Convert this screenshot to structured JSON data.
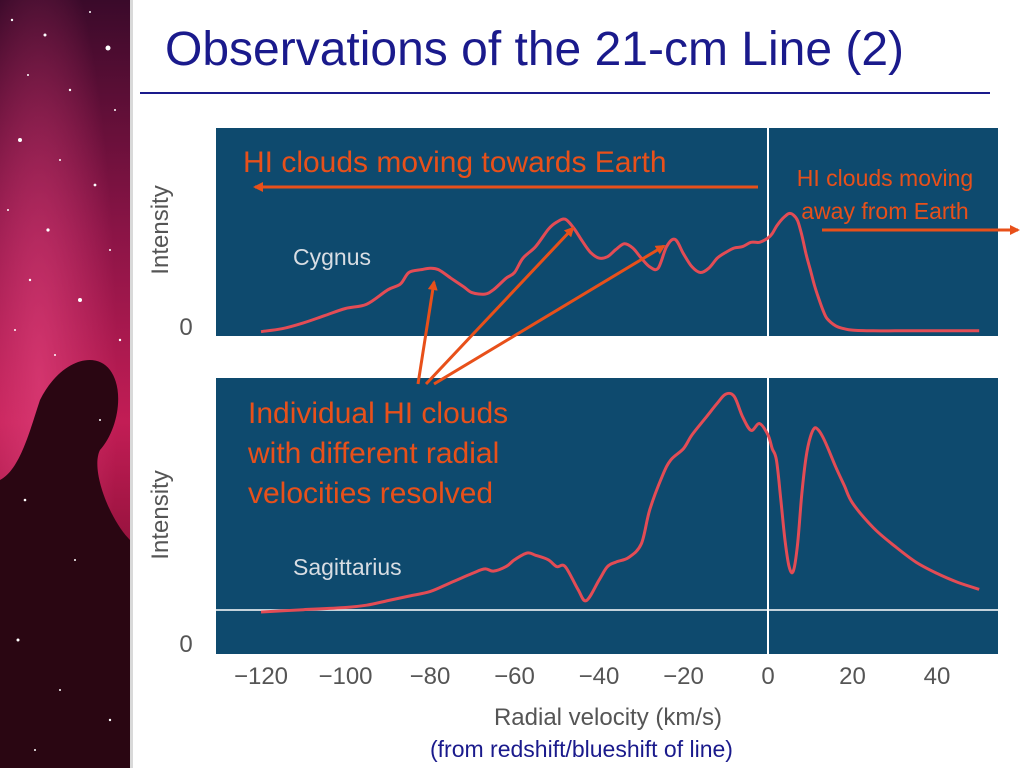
{
  "slide": {
    "title": "Observations of the 21-cm Line (2)",
    "footnote": "(from redshift/blueshift of line)"
  },
  "annotations": {
    "towards": "HI clouds moving towards Earth",
    "away_line1": "HI clouds moving",
    "away_line2": "away from Earth",
    "individual_line1": "Individual HI clouds",
    "individual_line2": "with different radial",
    "individual_line3": "velocities resolved"
  },
  "colors": {
    "title": "#1a1a8c",
    "annotation": "#e8501a",
    "panel": "#0e4a6e",
    "curve": "#e34c55"
  },
  "chart_data": [
    {
      "type": "line",
      "panel_label": "Cygnus",
      "ylabel": "Intensity",
      "y_tick": "0",
      "xlim": [
        -120,
        50
      ],
      "ylim": [
        0,
        1
      ],
      "x": [
        -120,
        -115,
        -110,
        -105,
        -100,
        -95,
        -90,
        -87,
        -85,
        -82,
        -80,
        -78,
        -75,
        -72,
        -70,
        -67,
        -65,
        -62,
        -60,
        -58,
        -55,
        -52,
        -50,
        -48,
        -46,
        -44,
        -42,
        -40,
        -38,
        -36,
        -34,
        -32,
        -30,
        -28,
        -26,
        -24,
        -22,
        -20,
        -18,
        -16,
        -14,
        -12,
        -10,
        -8,
        -6,
        -4,
        -2,
        0,
        1,
        2,
        3,
        4,
        5,
        6,
        7,
        8,
        9,
        10,
        11,
        12,
        13,
        14,
        16,
        18,
        20,
        25,
        30,
        35,
        40,
        45,
        50
      ],
      "y": [
        0.01,
        0.03,
        0.07,
        0.12,
        0.17,
        0.2,
        0.3,
        0.34,
        0.42,
        0.44,
        0.45,
        0.44,
        0.38,
        0.32,
        0.28,
        0.27,
        0.3,
        0.38,
        0.42,
        0.52,
        0.6,
        0.72,
        0.77,
        0.79,
        0.73,
        0.64,
        0.56,
        0.52,
        0.53,
        0.58,
        0.62,
        0.59,
        0.52,
        0.46,
        0.45,
        0.6,
        0.65,
        0.55,
        0.46,
        0.42,
        0.45,
        0.52,
        0.56,
        0.59,
        0.6,
        0.63,
        0.63,
        0.66,
        0.69,
        0.74,
        0.78,
        0.81,
        0.83,
        0.82,
        0.78,
        0.68,
        0.55,
        0.44,
        0.33,
        0.24,
        0.16,
        0.1,
        0.05,
        0.03,
        0.02,
        0.015,
        0.015,
        0.015,
        0.015,
        0.015,
        0.015
      ]
    },
    {
      "type": "line",
      "panel_label": "Sagittarius",
      "ylabel": "Intensity",
      "y_tick": "0",
      "xlabel": "Radial velocity (km/s)",
      "xlim": [
        -120,
        50
      ],
      "xticks": [
        -120,
        -100,
        -80,
        -60,
        -40,
        -20,
        0,
        20,
        40
      ],
      "xtick_labels": [
        "−120",
        "−100",
        "−80",
        "−60",
        "−40",
        "−20",
        "0",
        "20",
        "40"
      ],
      "ylim": [
        0,
        1
      ],
      "x": [
        -120,
        -110,
        -100,
        -95,
        -90,
        -85,
        -80,
        -75,
        -70,
        -67,
        -65,
        -62,
        -60,
        -57,
        -55,
        -52,
        -50,
        -48,
        -45,
        -43,
        -40,
        -38,
        -36,
        -33,
        -30,
        -28,
        -25,
        -23,
        -20,
        -18,
        -15,
        -12,
        -10,
        -8,
        -6,
        -4,
        -2,
        0,
        1,
        2,
        3,
        4,
        5,
        6,
        7,
        8,
        9,
        10,
        11,
        12,
        13,
        14,
        16,
        18,
        20,
        25,
        30,
        35,
        40,
        45,
        50
      ],
      "y": [
        0.0,
        0.01,
        0.02,
        0.03,
        0.05,
        0.07,
        0.09,
        0.13,
        0.17,
        0.19,
        0.18,
        0.2,
        0.23,
        0.26,
        0.25,
        0.23,
        0.2,
        0.2,
        0.1,
        0.05,
        0.14,
        0.2,
        0.22,
        0.24,
        0.3,
        0.45,
        0.6,
        0.67,
        0.72,
        0.78,
        0.85,
        0.92,
        0.96,
        0.95,
        0.86,
        0.8,
        0.83,
        0.78,
        0.72,
        0.67,
        0.5,
        0.32,
        0.2,
        0.18,
        0.3,
        0.52,
        0.68,
        0.77,
        0.81,
        0.8,
        0.77,
        0.73,
        0.64,
        0.56,
        0.48,
        0.37,
        0.29,
        0.22,
        0.17,
        0.13,
        0.1
      ]
    }
  ]
}
